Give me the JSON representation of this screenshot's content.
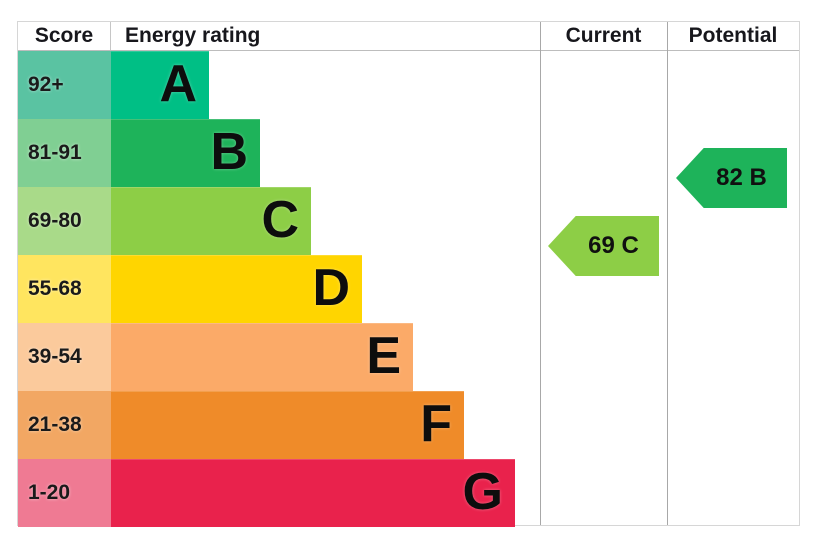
{
  "header": {
    "score": "Score",
    "energy_rating": "Energy rating",
    "current": "Current",
    "potential": "Potential"
  },
  "bands": [
    {
      "score": "92+",
      "letter": "A",
      "bar_color": "#00bf85",
      "tint_color": "#5ac3a2"
    },
    {
      "score": "81-91",
      "letter": "B",
      "bar_color": "#1eb35a",
      "tint_color": "#80cf93"
    },
    {
      "score": "69-80",
      "letter": "C",
      "bar_color": "#8dce46",
      "tint_color": "#a9da89"
    },
    {
      "score": "55-68",
      "letter": "D",
      "bar_color": "#ffd500",
      "tint_color": "#ffe55f"
    },
    {
      "score": "39-54",
      "letter": "E",
      "bar_color": "#fbaa68",
      "tint_color": "#fbca9c"
    },
    {
      "score": "21-38",
      "letter": "F",
      "bar_color": "#ef8b29",
      "tint_color": "#f2a763"
    },
    {
      "score": "1-20",
      "letter": "G",
      "bar_color": "#e9224c",
      "tint_color": "#ef7a93"
    }
  ],
  "current_arrow": {
    "label": "69 C",
    "value": 69,
    "band": "C",
    "color": "#8dce46"
  },
  "potential_arrow": {
    "label": "82 B",
    "value": 82,
    "band": "B",
    "color": "#1eb35a"
  },
  "chart_data": {
    "type": "bar",
    "title": "Energy rating",
    "columns": [
      "Score",
      "Energy rating",
      "Current",
      "Potential"
    ],
    "categories": [
      "A",
      "B",
      "C",
      "D",
      "E",
      "F",
      "G"
    ],
    "score_ranges": [
      "92+",
      "81-91",
      "69-80",
      "55-68",
      "39-54",
      "21-38",
      "1-20"
    ],
    "bar_colors": [
      "#00bf85",
      "#1eb35a",
      "#8dce46",
      "#ffd500",
      "#fbaa68",
      "#ef8b29",
      "#e9224c"
    ],
    "bar_length_rank": [
      1,
      2,
      3,
      4,
      5,
      6,
      7
    ],
    "current": {
      "value": 69,
      "band": "C"
    },
    "potential": {
      "value": 82,
      "band": "B"
    }
  }
}
